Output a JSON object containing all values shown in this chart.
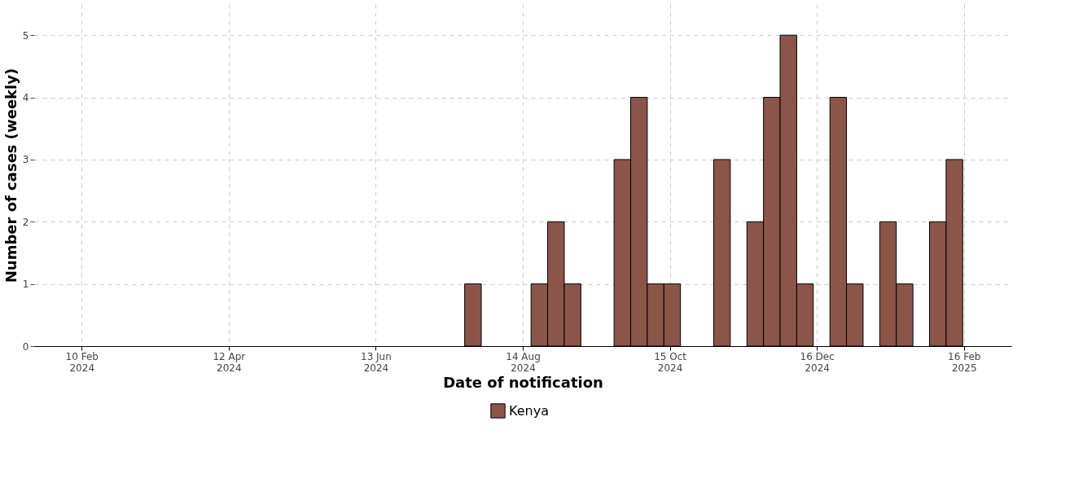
{
  "chart_data": {
    "type": "bar",
    "xlabel": "Date of notification",
    "ylabel": "Number of cases (weekly)",
    "x": [
      "2024-07-24",
      "2024-08-21",
      "2024-08-28",
      "2024-09-04",
      "2024-09-25",
      "2024-10-02",
      "2024-10-09",
      "2024-10-16",
      "2024-11-06",
      "2024-11-20",
      "2024-11-27",
      "2024-12-04",
      "2024-12-11",
      "2024-12-25",
      "2025-01-01",
      "2025-01-15",
      "2025-01-22",
      "2025-02-05",
      "2025-02-12"
    ],
    "series": [
      {
        "name": "Kenya",
        "color": "#8b5549",
        "values": [
          1,
          1,
          2,
          1,
          3,
          4,
          1,
          1,
          3,
          2,
          4,
          5,
          1,
          4,
          1,
          2,
          1,
          2,
          3
        ]
      }
    ],
    "xlim": [
      "2024-01-21",
      "2025-03-08"
    ],
    "xticks": [
      {
        "value": "2024-02-10",
        "label": "10 Feb\n2024"
      },
      {
        "value": "2024-04-12",
        "label": "12 Apr\n2024"
      },
      {
        "value": "2024-06-13",
        "label": "13 Jun\n2024"
      },
      {
        "value": "2024-08-14",
        "label": "14 Aug\n2024"
      },
      {
        "value": "2024-10-15",
        "label": "15 Oct\n2024"
      },
      {
        "value": "2024-12-16",
        "label": "16 Dec\n2024"
      },
      {
        "value": "2025-02-16",
        "label": "16 Feb\n2025"
      }
    ],
    "ylim": [
      0,
      5.5
    ],
    "yticks": [
      0,
      1,
      2,
      3,
      4,
      5
    ],
    "grid": true,
    "legend": "bottom"
  }
}
